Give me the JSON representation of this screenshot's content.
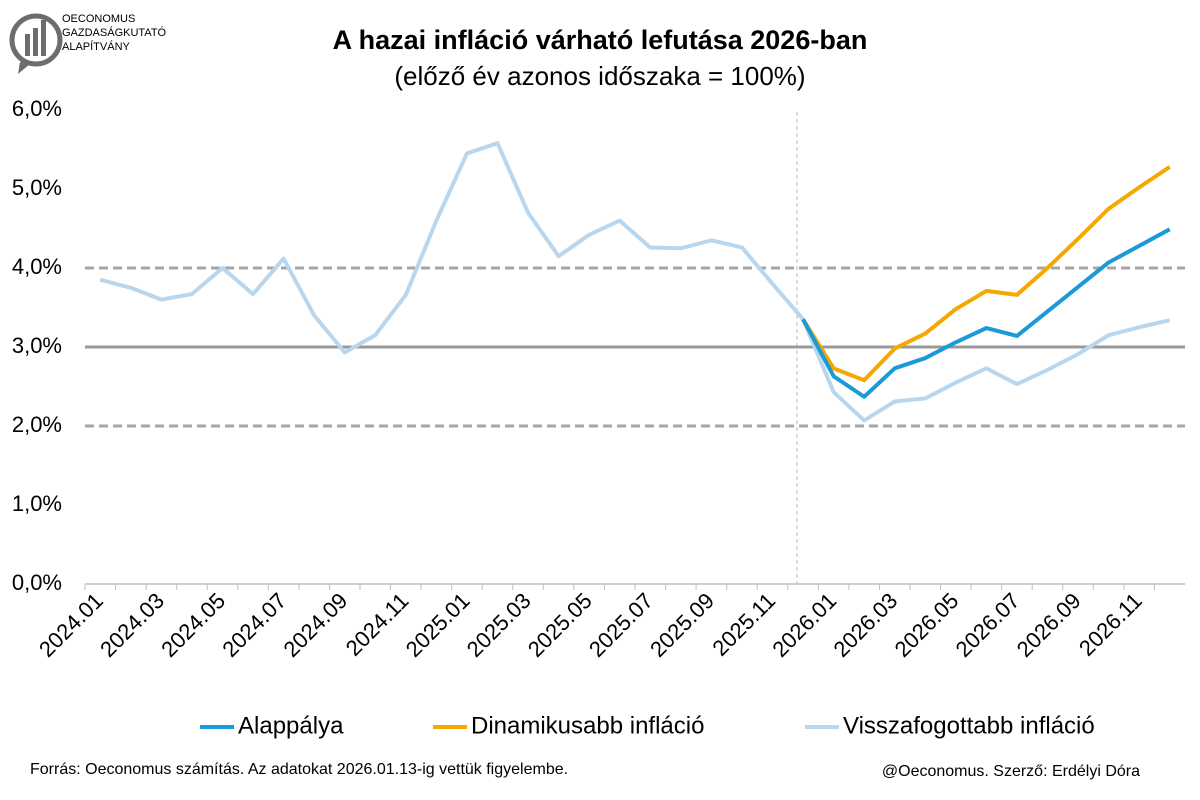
{
  "chart_data": {
    "type": "line",
    "title": "A hazai infláció várható lefutása 2026-ban",
    "subtitle": "(előző év azonos időszaka = 100%)",
    "logo": [
      "OECONOMUS",
      "GAZDASÁGKUTATÓ",
      "ALAPÍTVÁNY"
    ],
    "source": "Forrás: Oeconomus számítás. Az adatokat 2026.01.13-ig vettük figyelembe.",
    "credit": "@Oeconomus. Szerző: Erdélyi Dóra",
    "categories": [
      "2024.01",
      null,
      "2024.03",
      null,
      "2024.05",
      null,
      "2024.07",
      null,
      "2024.09",
      null,
      "2024.11",
      null,
      "2025.01",
      null,
      "2025.03",
      null,
      "2025.05",
      null,
      "2025.07",
      null,
      "2025.09",
      null,
      "2025.11",
      null,
      "2026.01",
      null,
      "2026.03",
      null,
      "2026.05",
      null,
      "2026.07",
      null,
      "2026.09",
      null,
      "2026.11",
      null
    ],
    "series": [
      {
        "name": "Alappálya",
        "color": "#1a9ad6",
        "values": [
          null,
          null,
          null,
          null,
          null,
          null,
          null,
          null,
          null,
          null,
          null,
          null,
          null,
          null,
          null,
          null,
          null,
          null,
          null,
          null,
          null,
          null,
          null,
          3.35,
          2.63,
          2.37,
          2.73,
          2.86,
          3.06,
          3.24,
          3.14,
          3.45,
          3.76,
          4.07,
          4.28,
          4.49
        ]
      },
      {
        "name": "Dinamikusabb infláció",
        "color": "#f5a800",
        "values": [
          null,
          null,
          null,
          null,
          null,
          null,
          null,
          null,
          null,
          null,
          null,
          null,
          null,
          null,
          null,
          null,
          null,
          null,
          null,
          null,
          null,
          null,
          null,
          3.35,
          2.73,
          2.58,
          2.98,
          3.17,
          3.48,
          3.71,
          3.66,
          4.0,
          4.37,
          4.75,
          5.02,
          5.28
        ]
      },
      {
        "name": "Visszafogottabb infláció",
        "color": "#b8d7ee",
        "values": [
          3.85,
          3.75,
          3.6,
          3.67,
          4.0,
          3.67,
          4.12,
          3.4,
          2.93,
          3.15,
          3.66,
          4.6,
          5.45,
          5.58,
          4.7,
          4.15,
          4.42,
          4.6,
          4.26,
          4.25,
          4.35,
          4.26,
          3.8,
          3.35,
          2.43,
          2.07,
          2.31,
          2.35,
          2.55,
          2.73,
          2.53,
          2.71,
          2.91,
          3.15,
          3.25,
          3.34
        ]
      }
    ],
    "reference_lines": [
      {
        "value": 4,
        "style": "dashed"
      },
      {
        "value": 3,
        "style": "solid"
      },
      {
        "value": 2,
        "style": "dashed"
      }
    ],
    "ylim": [
      0,
      6
    ],
    "yticks": [
      {
        "value": 0,
        "label": "0,0%"
      },
      {
        "value": 1,
        "label": "1,0%"
      },
      {
        "value": 2,
        "label": "2,0%"
      },
      {
        "value": 3,
        "label": "3,0%"
      },
      {
        "value": 4,
        "label": "4,0%"
      },
      {
        "value": 5,
        "label": "5,0%"
      },
      {
        "value": 6,
        "label": "6,0%"
      }
    ],
    "grid": false,
    "legend": "bottom"
  }
}
